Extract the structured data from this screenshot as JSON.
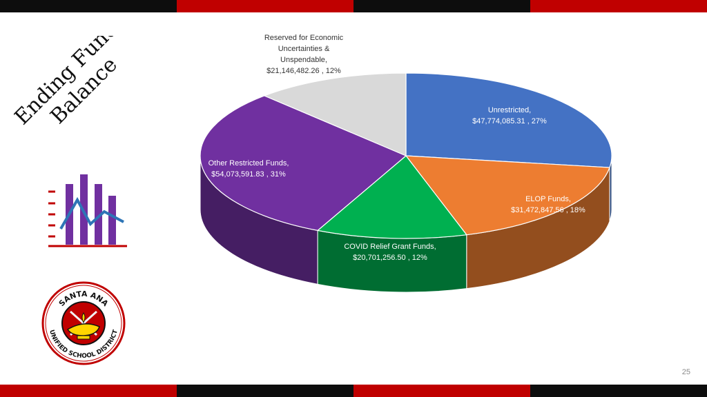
{
  "slide": {
    "title_line1": "Ending Fund",
    "title_line2": "Balance",
    "page_number": "25"
  },
  "colors": {
    "band_black": "#0d0d0d",
    "band_red": "#c00000",
    "title": "#111111",
    "icon_bars": "#7030a0",
    "icon_line": "#2e75b6",
    "icon_axis": "#c00000"
  },
  "logo": {
    "text_top": "SANTA ANA",
    "text_bottom": "UNIFIED SCHOOL DISTRICT",
    "icon": "lamp-of-learning-icon"
  },
  "chart_data": {
    "type": "pie",
    "style": "3d-tilted",
    "slices": [
      {
        "name": "Unrestricted",
        "value": 47774085.31,
        "value_label": "$47,774,085.31",
        "percent_label": "27%",
        "color": "#4472c4"
      },
      {
        "name": "ELOP Funds",
        "value": 31472847.56,
        "value_label": "$31,472,847.56",
        "percent_label": "18%",
        "color": "#ed7d31"
      },
      {
        "name": "COVID Relief Grant Funds",
        "value": 20701256.5,
        "value_label": "$20,701,256.50",
        "percent_label": "12%",
        "color": "#00b050"
      },
      {
        "name": "Other Restricted Funds",
        "value": 54073591.83,
        "value_label": "$54,073,591.83",
        "percent_label": "31%",
        "color": "#7030a0"
      },
      {
        "name": "Reserved for Economic Uncertainties & Unspendable",
        "value": 21146482.26,
        "value_label": "$21,146,482.26",
        "percent_label": "12%",
        "color": "#d9d9d9"
      }
    ]
  }
}
